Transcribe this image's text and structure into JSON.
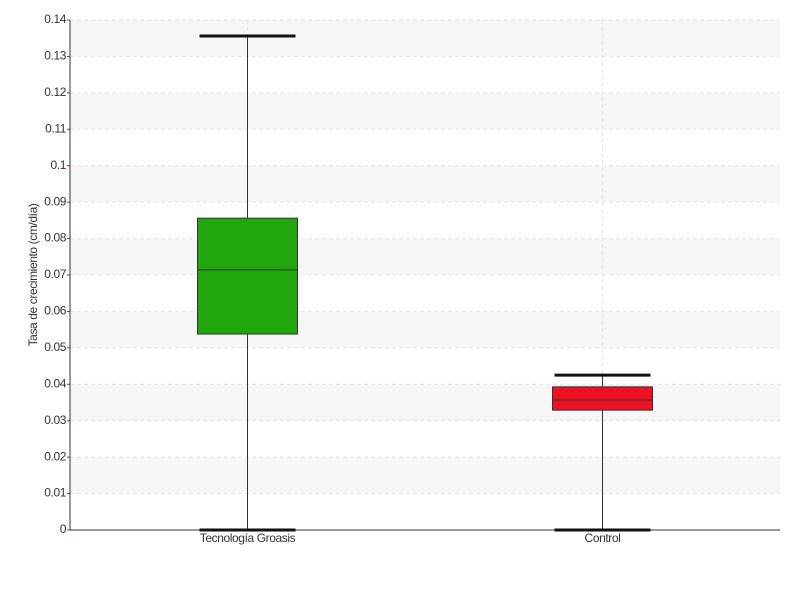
{
  "chart_data": {
    "type": "box",
    "y_label": "Tasa de crecimiento (cm/día)",
    "categories": [
      "Tecnología Groasis",
      "Control"
    ],
    "boxes": [
      {
        "min": 0,
        "q1": 0.0538,
        "median": 0.0714,
        "q3": 0.0856,
        "max": 0.1356,
        "color": "#22a60d"
      },
      {
        "min": 0,
        "q1": 0.0329,
        "median": 0.0357,
        "q3": 0.0393,
        "max": 0.0425,
        "color": "#ee1122"
      }
    ],
    "ylim": [
      0,
      0.14
    ],
    "yticks": [
      0,
      0.01,
      0.02,
      0.03,
      0.04,
      0.05,
      0.06,
      0.07,
      0.08,
      0.09,
      0.1,
      0.11,
      0.12,
      0.13,
      0.14
    ],
    "grid": true
  }
}
